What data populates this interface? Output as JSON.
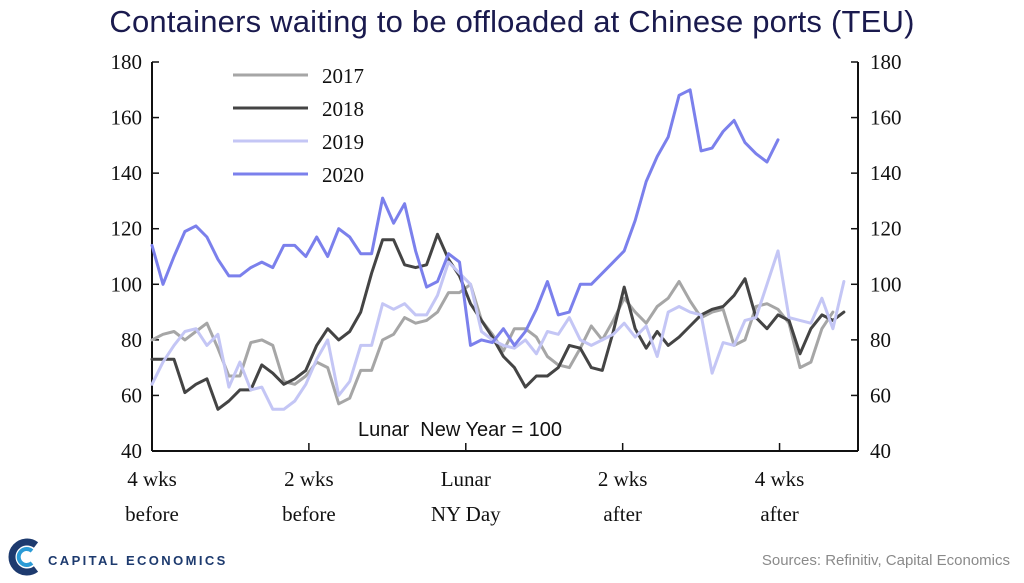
{
  "chart_data": {
    "type": "line",
    "title": "Containers waiting to be offloaded at Chinese ports (TEU)",
    "ylim": [
      40,
      180
    ],
    "yticks": [
      40,
      60,
      80,
      100,
      120,
      140,
      160,
      180
    ],
    "x_tick_positions": [
      0,
      10,
      20,
      30,
      40
    ],
    "x_tick_labels": [
      [
        "4 wks",
        "before"
      ],
      [
        "2 wks",
        "before"
      ],
      [
        "Lunar",
        "NY Day"
      ],
      [
        "2 wks",
        "after"
      ],
      [
        "4 wks",
        "after"
      ]
    ],
    "xlim": [
      0,
      45
    ],
    "annotation": "Lunar  New Year = 100",
    "series": [
      {
        "name": "2017",
        "color": "#a6a6a6",
        "values": [
          80,
          82,
          83,
          80,
          83,
          86,
          77,
          67,
          67,
          79,
          80,
          78,
          65,
          64,
          67,
          72,
          70,
          57,
          59,
          69,
          69,
          80,
          82,
          88,
          86,
          87,
          90,
          97,
          97,
          100,
          87,
          82,
          76,
          84,
          84,
          81,
          74,
          71,
          70,
          77,
          85,
          80,
          87,
          95,
          90,
          86,
          92,
          95,
          101,
          94,
          88,
          90,
          91,
          78,
          80,
          92,
          93,
          91,
          86,
          70,
          72,
          84,
          90
        ]
      },
      {
        "name": "2018",
        "color": "#444444",
        "values": [
          73,
          73,
          73,
          61,
          64,
          66,
          55,
          58,
          62,
          62,
          71,
          68,
          64,
          66,
          69,
          78,
          84,
          80,
          83,
          90,
          104,
          116,
          116,
          107,
          106,
          107,
          118,
          109,
          103,
          93,
          87,
          81,
          74,
          70,
          63,
          67,
          67,
          70,
          78,
          77,
          70,
          69,
          83,
          99,
          84,
          77,
          83,
          78,
          81,
          85,
          89,
          91,
          92,
          96,
          102,
          88,
          84,
          89,
          87,
          75,
          84,
          89,
          87,
          90
        ]
      },
      {
        "name": "2019",
        "color": "#c4c6f5",
        "values": [
          64,
          72,
          78,
          83,
          84,
          78,
          82,
          63,
          72,
          62,
          63,
          55,
          55,
          58,
          64,
          73,
          80,
          60,
          65,
          78,
          78,
          93,
          91,
          93,
          89,
          89,
          96,
          108,
          104,
          100,
          83,
          80,
          78,
          77,
          80,
          75,
          83,
          82,
          88,
          80,
          78,
          80,
          82,
          86,
          81,
          85,
          74,
          90,
          92,
          90,
          89,
          68,
          79,
          78,
          87,
          88,
          100,
          112,
          88,
          87,
          86,
          95,
          84,
          101
        ]
      },
      {
        "name": "2020",
        "color": "#7b80ec",
        "values": [
          114,
          100,
          110,
          119,
          121,
          117,
          109,
          103,
          103,
          106,
          108,
          106,
          114,
          114,
          110,
          117,
          110,
          120,
          117,
          111,
          111,
          131,
          122,
          129,
          112,
          99,
          101,
          111,
          108,
          78,
          80,
          79,
          84,
          78,
          83,
          91,
          101,
          89,
          90,
          100,
          100,
          104,
          108,
          112,
          123,
          137,
          146,
          153,
          168,
          170,
          148,
          149,
          155,
          159,
          151,
          147,
          144,
          152
        ]
      }
    ]
  },
  "branding": {
    "logo_text": "CAPITAL ECONOMICS",
    "logo_icon": "capital-economics-logo-icon"
  },
  "source": "Sources: Refinitiv, Capital Economics"
}
